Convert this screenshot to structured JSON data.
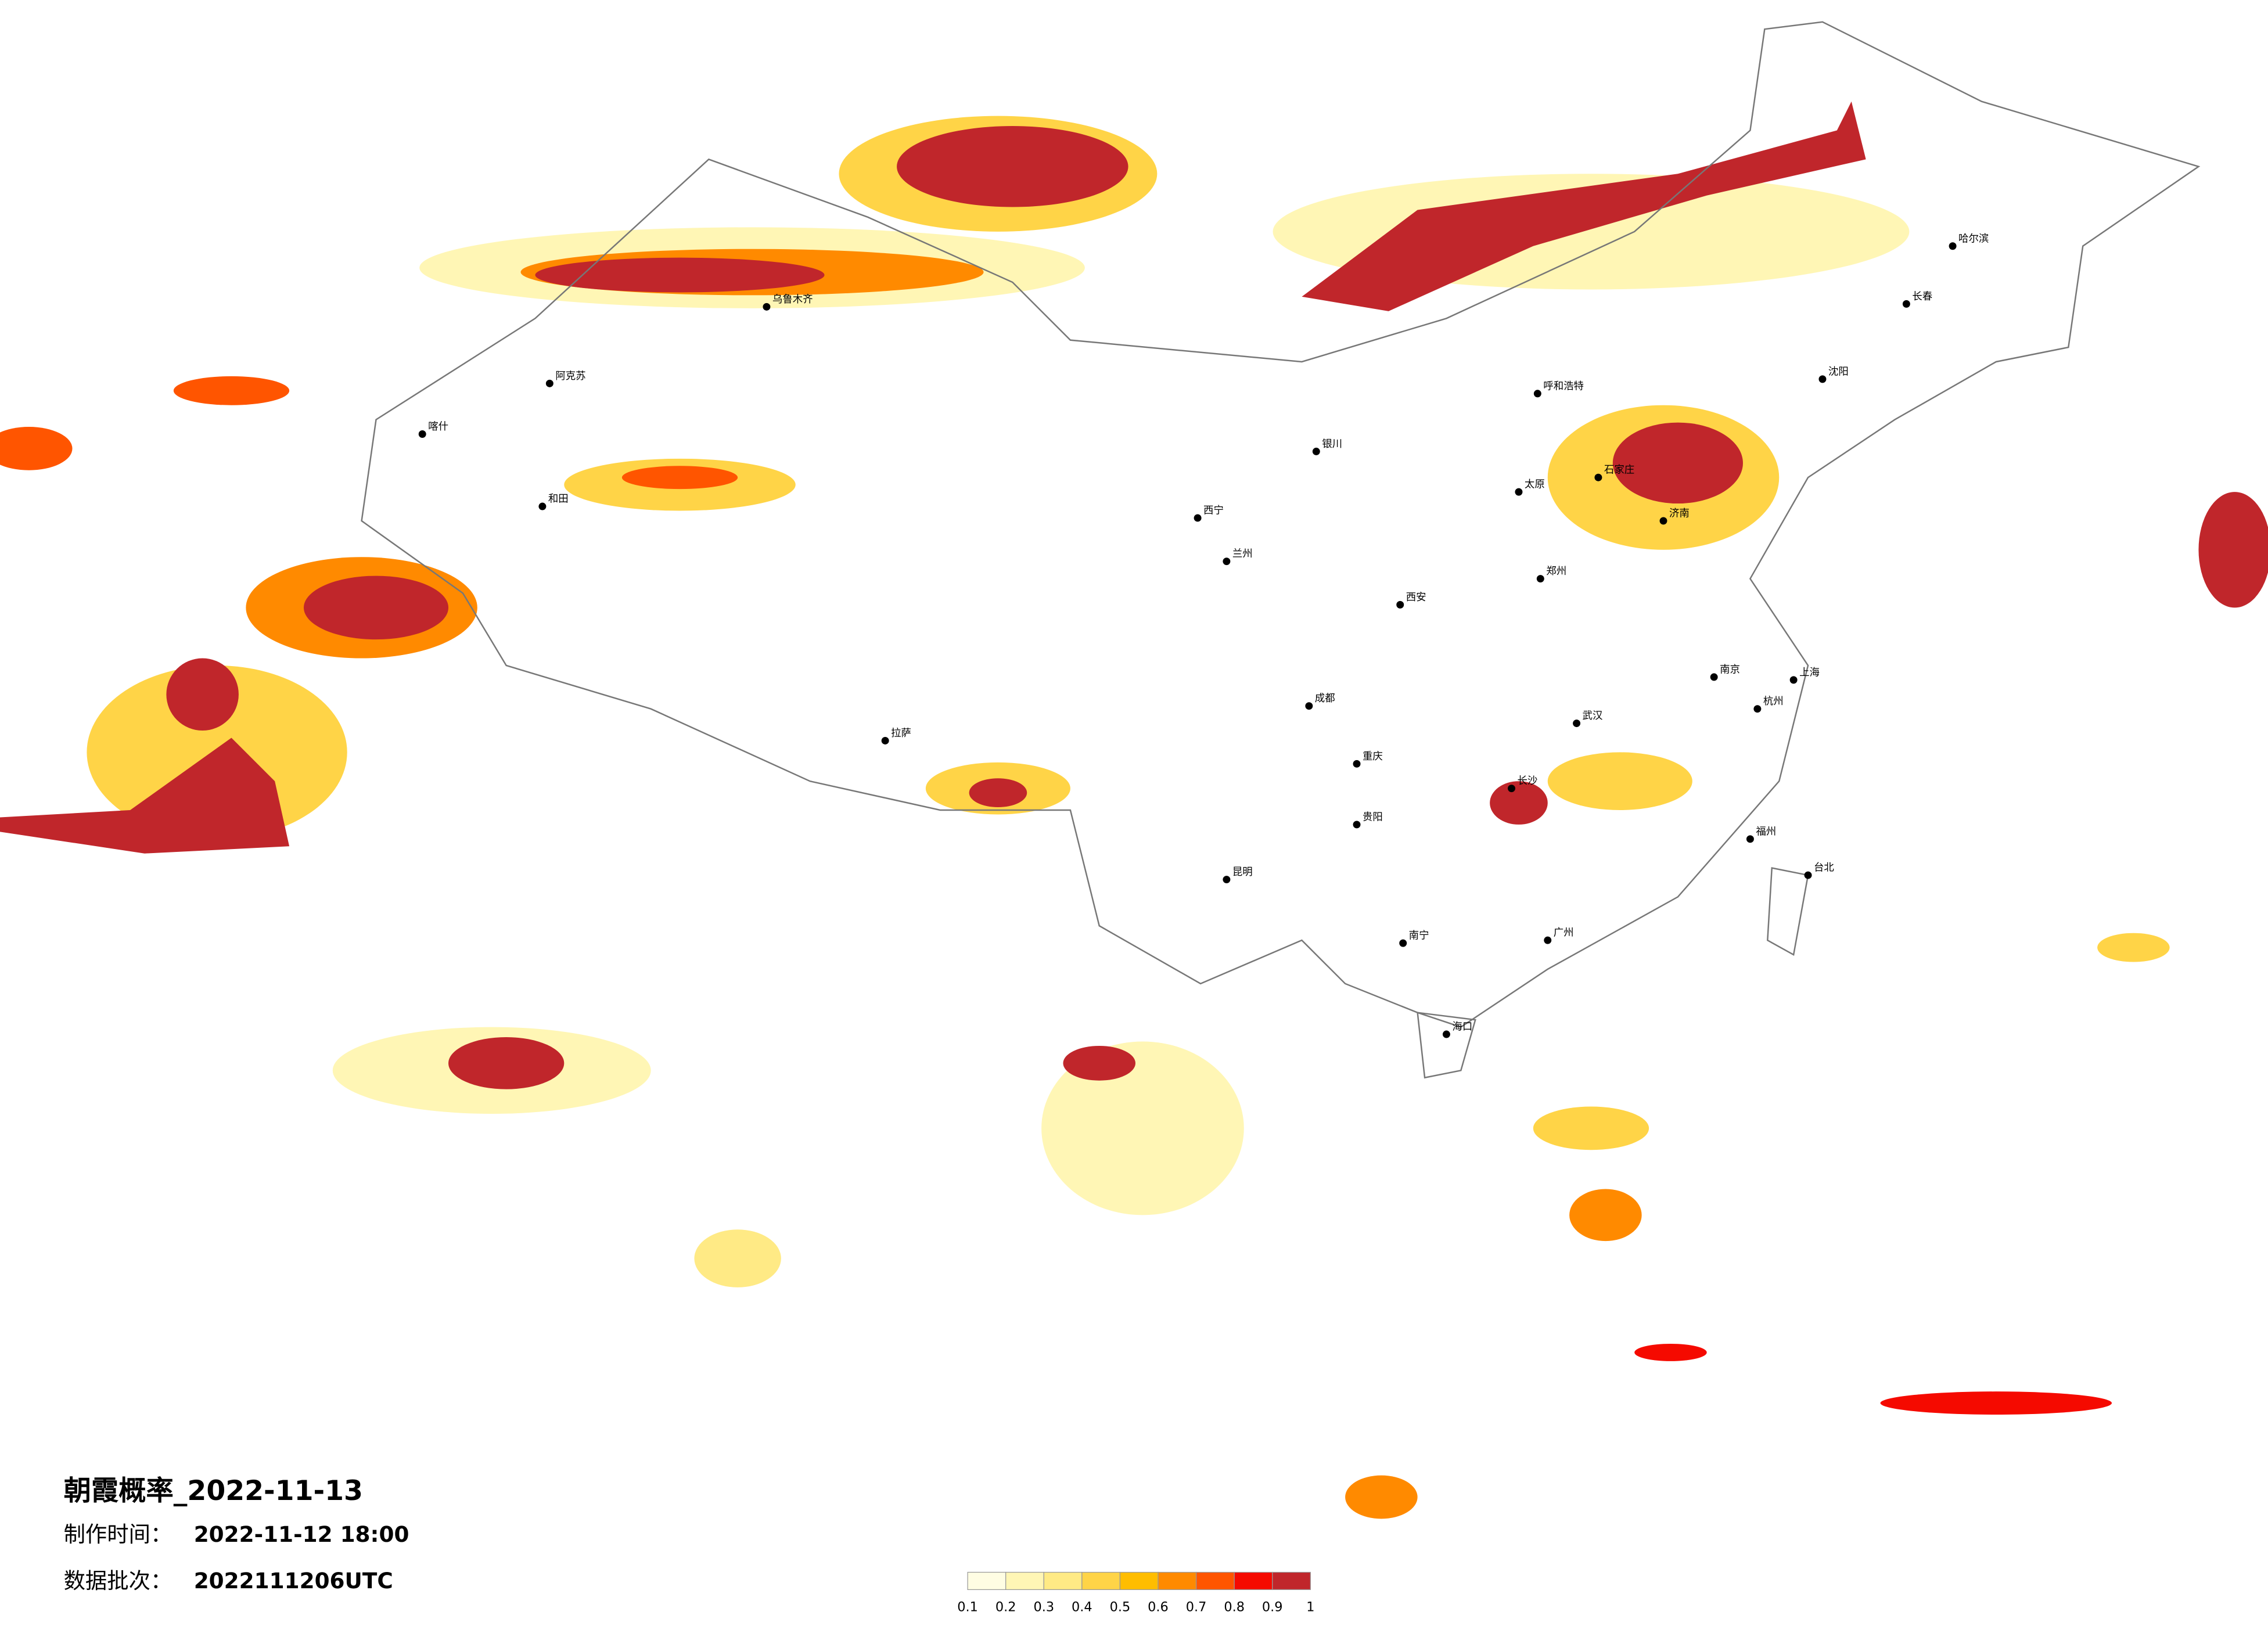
{
  "title": "朝霞概率_2022-11-13",
  "made_time": {
    "label": "制作时间：",
    "value": "2022-11-12 18:00"
  },
  "batch": {
    "label": "数据批次：",
    "value": "2022111206UTC"
  },
  "legend": {
    "ticks": [
      0.1,
      0.2,
      0.3,
      0.4,
      0.5,
      0.6,
      0.7,
      0.8,
      0.9,
      1
    ],
    "colors": [
      "#fffde3",
      "#fff6b5",
      "#ffea85",
      "#ffd447",
      "#ffbd00",
      "#ff8a00",
      "#ff5500",
      "#f50a00",
      "#c0262b"
    ]
  },
  "cities": [
    "乌鲁木齐",
    "拉萨",
    "西宁",
    "兰州",
    "成都",
    "重庆",
    "昆明",
    "贵阳",
    "南宁",
    "广州",
    "福州",
    "杭州",
    "上海",
    "南京",
    "武汉",
    "长沙",
    "郑州",
    "西安",
    "太原",
    "石家庄",
    "济南",
    "呼和浩特",
    "沈阳",
    "长春",
    "哈尔滨",
    "银川",
    "海口",
    "台北",
    "喀什",
    "和田",
    "阿克苏"
  ]
}
